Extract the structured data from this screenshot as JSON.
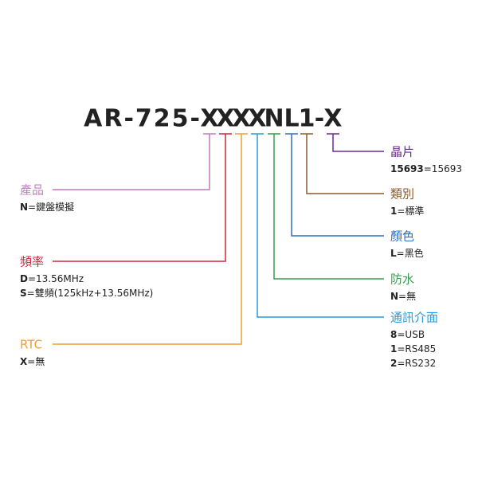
{
  "code": [
    "AR-725-",
    "X",
    "X",
    "X",
    "X",
    "N",
    "L",
    "1",
    "-",
    "X"
  ],
  "left": [
    {
      "title": "產品",
      "color": "#c07cbf",
      "options": [
        {
          "key": "N",
          "desc": "=鍵盤模擬"
        }
      ]
    },
    {
      "title": "頻率",
      "color": "#d2233c",
      "options": [
        {
          "key": "D",
          "desc": "=13.56MHz"
        },
        {
          "key": "S",
          "desc": "=雙頻(125kHz+13.56MHz)"
        }
      ]
    },
    {
      "title": "RTC",
      "color": "#e9a22e",
      "options": [
        {
          "key": "X",
          "desc": "=無"
        }
      ]
    }
  ],
  "right": [
    {
      "title": "晶片",
      "color": "#6b2a96",
      "options": [
        {
          "key": "15693",
          "desc": "=15693"
        }
      ]
    },
    {
      "title": "類別",
      "color": "#8a5a2c",
      "options": [
        {
          "key": "1",
          "desc": "=標準"
        }
      ]
    },
    {
      "title": "顏色",
      "color": "#2f6fc2",
      "options": [
        {
          "key": "L",
          "desc": "=黑色"
        }
      ]
    },
    {
      "title": "防水",
      "color": "#3a9b4e",
      "options": [
        {
          "key": "N",
          "desc": "=無"
        }
      ]
    },
    {
      "title": "通訊介面",
      "color": "#2a9ad8",
      "options": [
        {
          "key": "8",
          "desc": "=USB"
        },
        {
          "key": "1",
          "desc": "=RS485"
        },
        {
          "key": "2",
          "desc": "=RS232"
        }
      ]
    }
  ]
}
